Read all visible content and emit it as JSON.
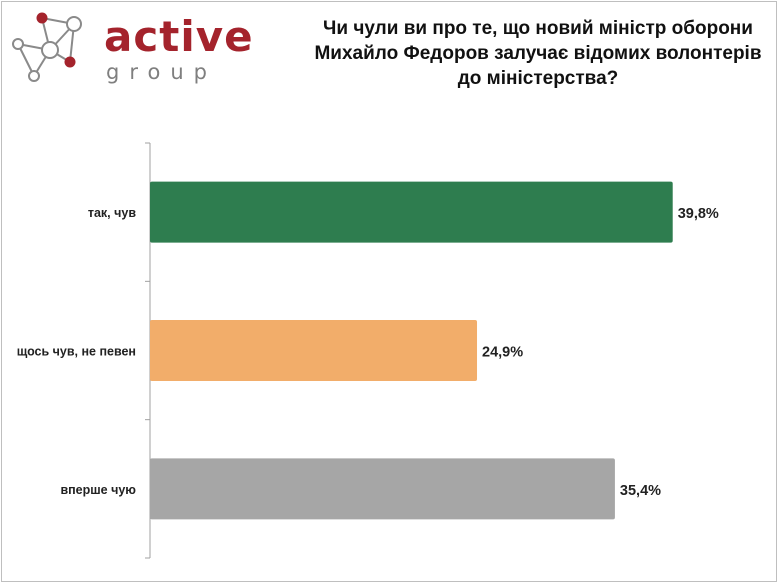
{
  "logo": {
    "brand": "active",
    "sub": "group",
    "accent_color": "#a4232c",
    "gray_color": "#7f7f7f"
  },
  "title_lines": [
    "Чи чули ви про те, що новий міністр оборони",
    "Михайло Федоров залучає відомих волонтерів",
    "до міністерства?"
  ],
  "chart_data": {
    "type": "bar",
    "orientation": "horizontal",
    "title": "Чи чули ви про те, що новий міністр оборони Михайло Федоров залучає відомих волонтерів до міністерства?",
    "categories": [
      "так, чув",
      "щось чув, не певен",
      "вперше чую"
    ],
    "values": [
      39.8,
      24.9,
      35.4
    ],
    "value_labels": [
      "39,8%",
      "24,9%",
      "35,4%"
    ],
    "colors": [
      "#2e7d4f",
      "#f2ad6a",
      "#a6a6a6"
    ],
    "xlim": [
      0,
      45
    ],
    "grid": false,
    "legend": "none"
  }
}
